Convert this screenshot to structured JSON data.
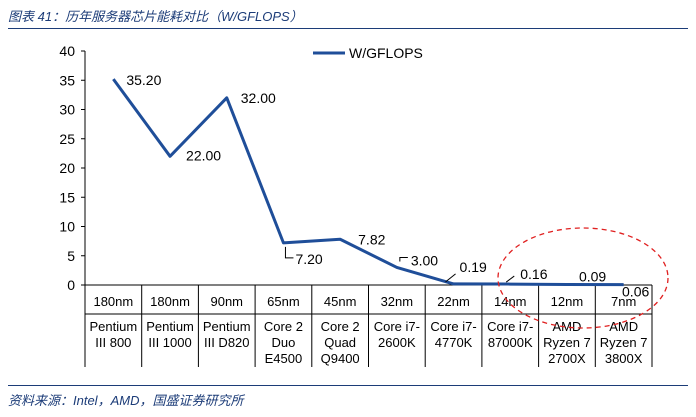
{
  "figure": {
    "title": "图表 41：历年服务器芯片能耗对比（W/GFLOPS）",
    "source": "资料来源：Intel，AMD，国盛证券研究所"
  },
  "colors": {
    "line": "#1f4e99",
    "text": "#000000",
    "accent": "#1c3c78",
    "highlight": "#e02020"
  },
  "chart_data": {
    "type": "line",
    "title": "",
    "xlabel": "",
    "ylabel": "",
    "ylim": [
      0,
      40
    ],
    "yticks": [
      0,
      5,
      10,
      15,
      20,
      25,
      30,
      35,
      40
    ],
    "legend": {
      "label": "W/GFLOPS",
      "placement": "top-right"
    },
    "categories": [
      {
        "node": "180nm",
        "chip": [
          "Pentium",
          "III 800"
        ]
      },
      {
        "node": "180nm",
        "chip": [
          "Pentium",
          "III 1000"
        ]
      },
      {
        "node": "90nm",
        "chip": [
          "Pentium",
          "III D820"
        ]
      },
      {
        "node": "65nm",
        "chip": [
          "Core 2",
          "Duo",
          "E4500"
        ]
      },
      {
        "node": "45nm",
        "chip": [
          "Core 2",
          "Quad",
          "Q9400"
        ]
      },
      {
        "node": "32nm",
        "chip": [
          "Core i7-",
          "2600K"
        ]
      },
      {
        "node": "22nm",
        "chip": [
          "Core i7-",
          "4770K"
        ]
      },
      {
        "node": "14nm",
        "chip": [
          "Core i7-",
          "87000K"
        ]
      },
      {
        "node": "12nm",
        "chip": [
          "AMD",
          "Ryzen 7",
          "2700X"
        ]
      },
      {
        "node": "7nm",
        "chip": [
          "AMD",
          "Ryzen 7",
          "3800X"
        ]
      }
    ],
    "series": [
      {
        "name": "W/GFLOPS",
        "values": [
          35.2,
          22.0,
          32.0,
          7.2,
          7.82,
          3.0,
          0.19,
          0.16,
          0.09,
          0.06
        ],
        "labels": [
          "35.20",
          "22.00",
          "32.00",
          "7.20",
          "7.82",
          "3.00",
          "0.19",
          "0.16",
          "0.09",
          "0.06"
        ]
      }
    ],
    "annotation": {
      "type": "dashed-ellipse",
      "around": [
        "14nm",
        "7nm"
      ]
    }
  }
}
